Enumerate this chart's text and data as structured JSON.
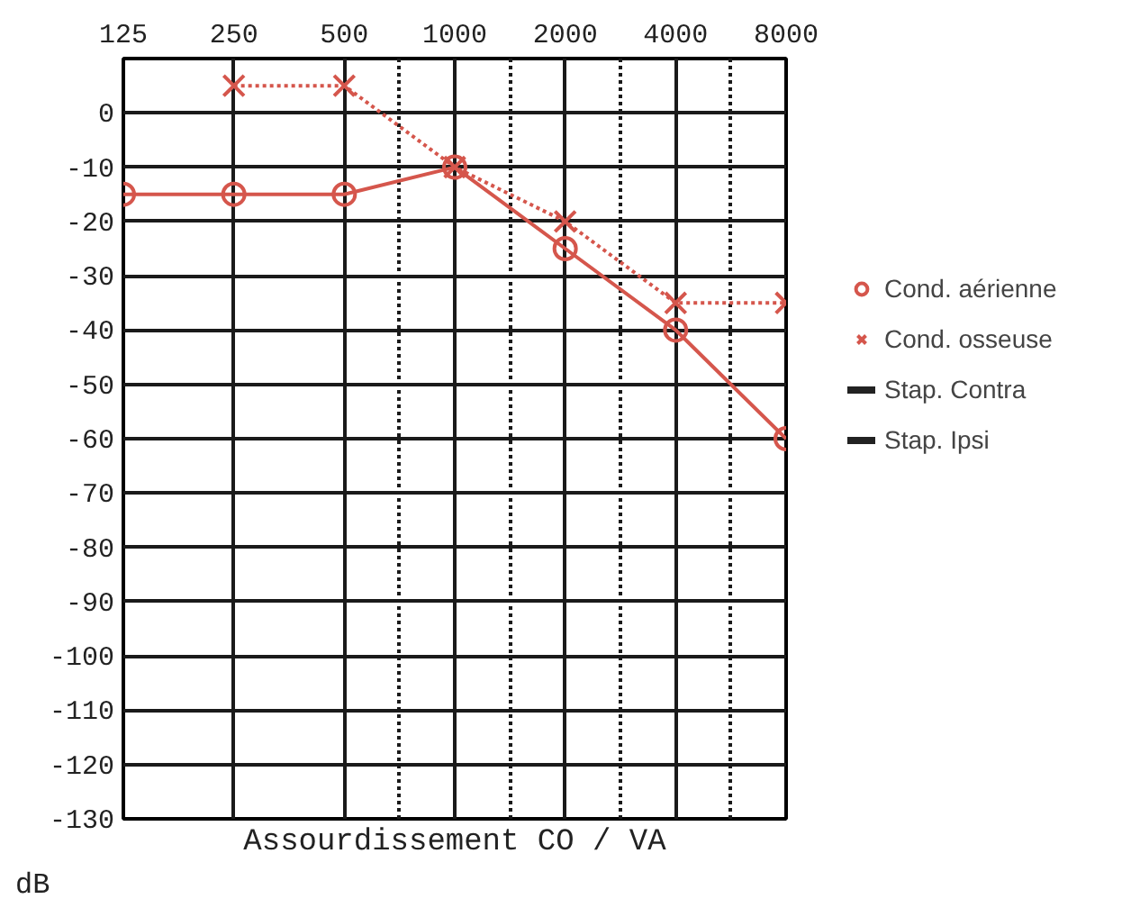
{
  "chart_data": {
    "type": "line",
    "categories": [
      "125",
      "250",
      "500",
      "1000",
      "2000",
      "4000",
      "8000"
    ],
    "xlabel": "Assourdissement CO / VA",
    "ylabel": "dB",
    "ylim": [
      -130,
      10
    ],
    "yticks": [
      0,
      -10,
      -20,
      -30,
      -40,
      -50,
      -60,
      -70,
      -80,
      -90,
      -100,
      -110,
      -120,
      -130
    ],
    "grid": true,
    "legend": "right",
    "series": [
      {
        "name": "Cond. aérienne",
        "color": "#d5564c",
        "marker": "circle",
        "line_style": "solid",
        "values": [
          -15,
          -15,
          -15,
          -10,
          -25,
          -40,
          -60
        ]
      },
      {
        "name": "Cond. osseuse",
        "color": "#d5564c",
        "marker": "cross",
        "line_style": "dotted",
        "values": [
          null,
          5,
          5,
          -10,
          -20,
          -35,
          -35
        ]
      },
      {
        "name": "Stap. Contra",
        "color": "#222222",
        "marker": "none",
        "values": [
          null,
          null,
          null,
          null,
          null,
          null,
          null
        ]
      },
      {
        "name": "Stap. Ipsi",
        "color": "#222222",
        "marker": "none",
        "values": [
          null,
          null,
          null,
          null,
          null,
          null,
          null
        ]
      }
    ]
  }
}
